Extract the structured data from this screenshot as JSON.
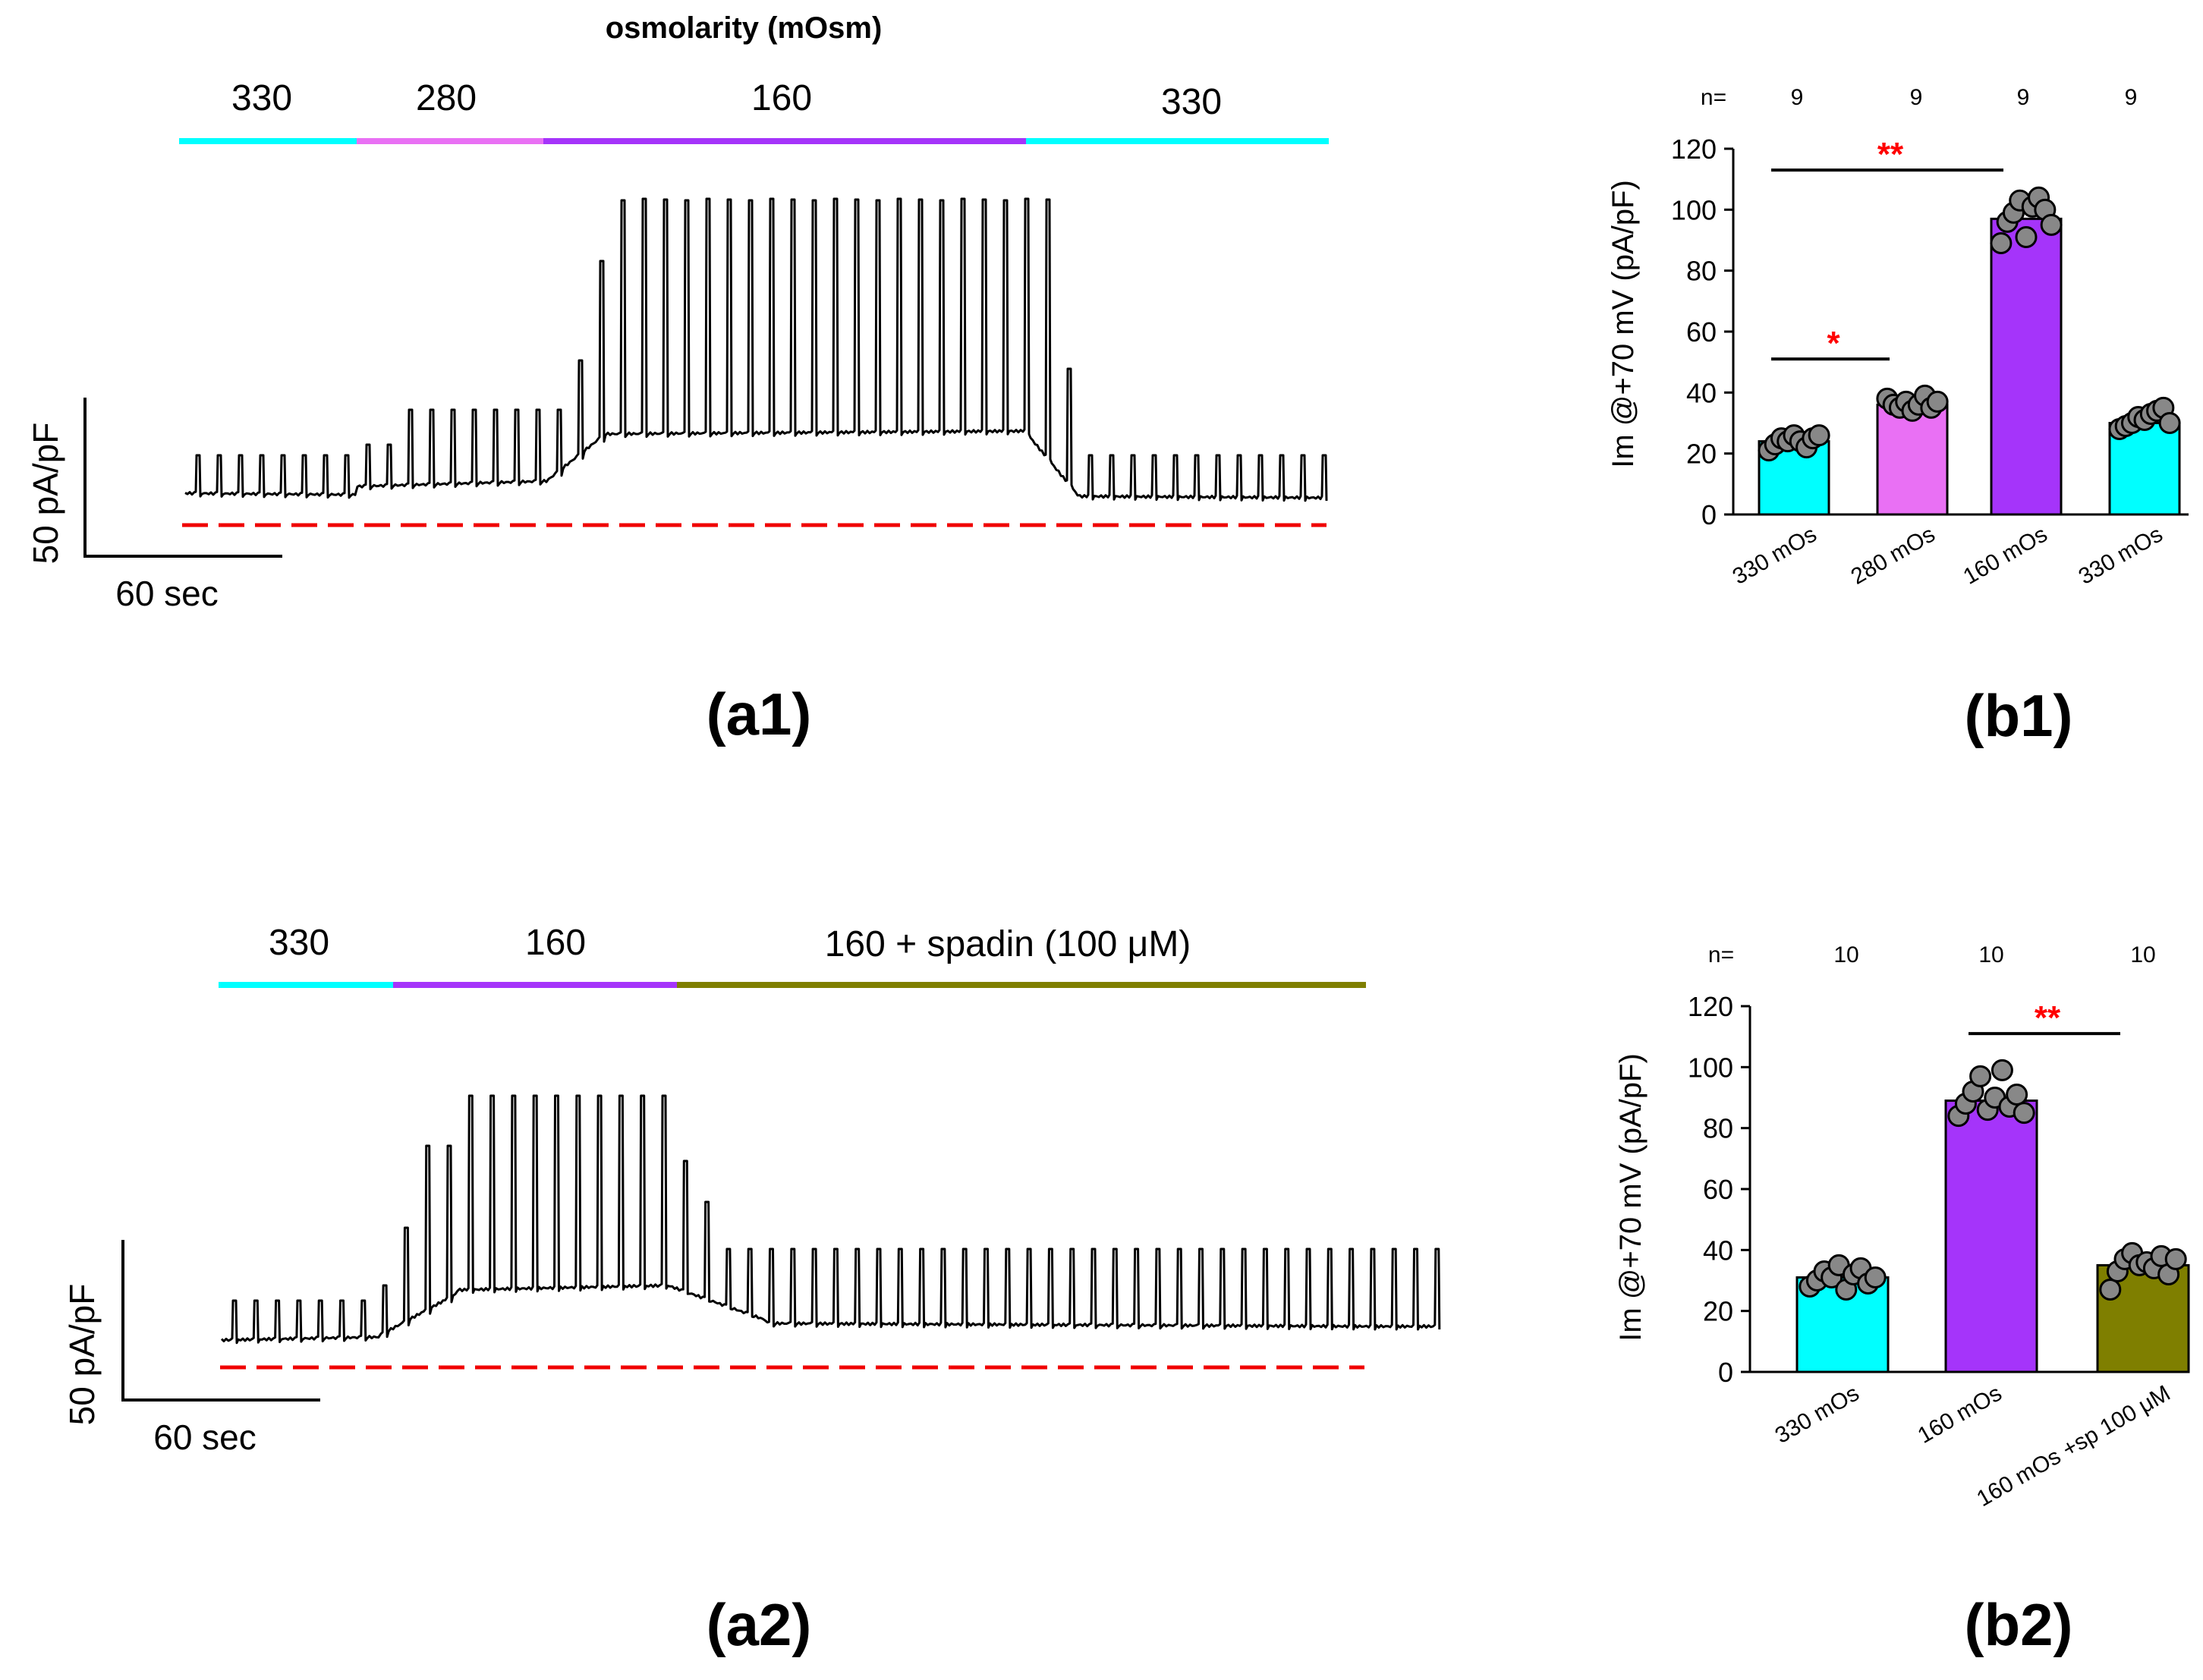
{
  "colors": {
    "c330": "#00FFFF",
    "c280": "#E970F4",
    "c160": "#A534FA",
    "cSpadin": "#7F7F00",
    "trace": "#000000",
    "zero": "#F00000",
    "star": "#FF0000",
    "dot": "#888888"
  },
  "a1": {
    "title": "osmolarity  (mOsm)",
    "segments": [
      {
        "label": "330",
        "color": "#00FFFF"
      },
      {
        "label": "280",
        "color": "#E970F4"
      },
      {
        "label": "160",
        "color": "#A534FA"
      },
      {
        "label": "330",
        "color": "#00FFFF"
      }
    ],
    "scale_y": "50 pA/pF",
    "scale_x": "60 sec",
    "panel_label": "(a1)"
  },
  "a2": {
    "segments": [
      {
        "label": "330",
        "color": "#00FFFF"
      },
      {
        "label": "160",
        "color": "#A534FA"
      },
      {
        "label": "160 + spadin (100 μM)",
        "color": "#7F7F00"
      }
    ],
    "scale_y": "50 pA/pF",
    "scale_x": "60 sec",
    "panel_label": "(a2)"
  },
  "chart_data": [
    {
      "type": "bar",
      "panel": "b1",
      "panel_label": "(b1)",
      "ylabel": "Im @+70 mV  (pA/pF)",
      "ylim": [
        0,
        120
      ],
      "yticks": [
        "0",
        "20",
        "40",
        "60",
        "80",
        "100",
        "120"
      ],
      "n_label": "n=",
      "n_values": [
        "9",
        "9",
        "9",
        "9"
      ],
      "categories": [
        "330 mOs",
        "280 mOs",
        "160 mOs",
        "330 mOs"
      ],
      "values": [
        24,
        36,
        97,
        30
      ],
      "bar_colors": [
        "#00FFFF",
        "#E970F4",
        "#A534FA",
        "#00FFFF"
      ],
      "points": [
        [
          21,
          23,
          25,
          24,
          26,
          24,
          22,
          25,
          26
        ],
        [
          38,
          36,
          35,
          37,
          34,
          36,
          39,
          35,
          37
        ],
        [
          89,
          96,
          99,
          103,
          91,
          101,
          104,
          100,
          95
        ],
        [
          28,
          29,
          30,
          32,
          31,
          33,
          34,
          35,
          30
        ]
      ],
      "significance": [
        {
          "from": 0,
          "to": 1,
          "label": "*"
        },
        {
          "from": 0,
          "to": 2,
          "label": "**"
        }
      ]
    },
    {
      "type": "bar",
      "panel": "b2",
      "panel_label": "(b2)",
      "ylabel": "Im @+70 mV  (pA/pF)",
      "ylim": [
        0,
        120
      ],
      "yticks": [
        "0",
        "20",
        "40",
        "60",
        "80",
        "100",
        "120"
      ],
      "n_label": "n=",
      "n_values": [
        "10",
        "10",
        "10"
      ],
      "categories": [
        "330 mOs",
        "160 mOs",
        "160 mOs +sp 100 μM"
      ],
      "values": [
        31,
        89,
        35
      ],
      "bar_colors": [
        "#00FFFF",
        "#A534FA",
        "#7F7F00"
      ],
      "points": [
        [
          28,
          30,
          33,
          31,
          35,
          27,
          32,
          34,
          29,
          31
        ],
        [
          84,
          88,
          92,
          97,
          86,
          90,
          99,
          87,
          91,
          85
        ],
        [
          27,
          33,
          37,
          39,
          35,
          36,
          34,
          38,
          32,
          37
        ]
      ],
      "significance": [
        {
          "from": 1,
          "to": 2,
          "label": "**"
        }
      ]
    }
  ]
}
